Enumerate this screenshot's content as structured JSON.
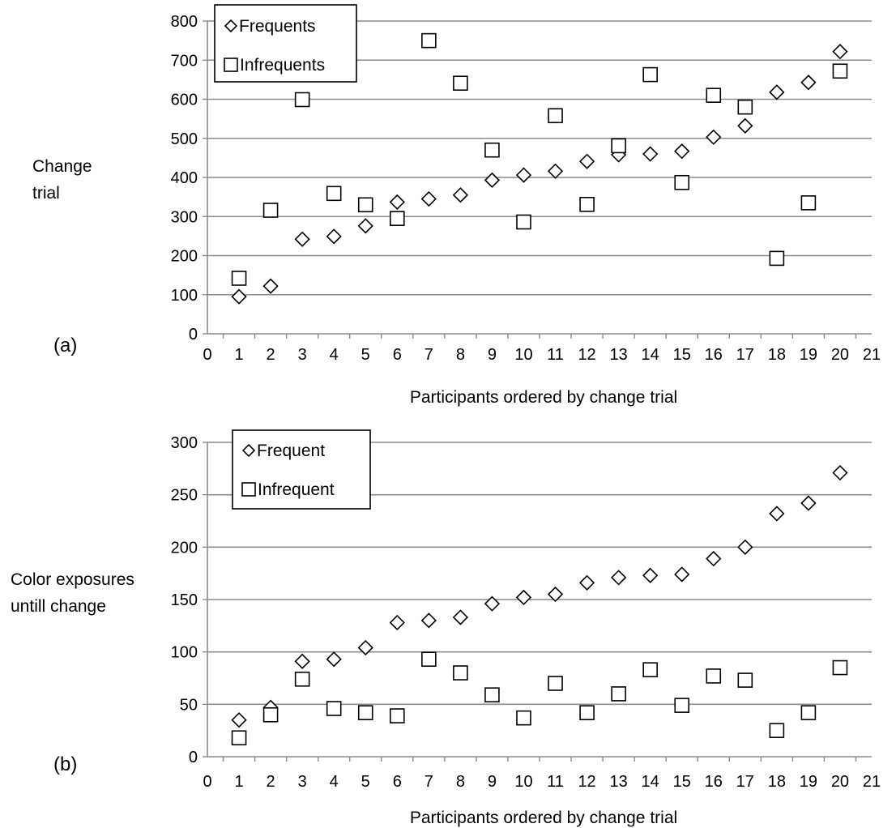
{
  "chart_data": [
    {
      "type": "scatter",
      "panel_label": "(a)",
      "ylabel": [
        "Change",
        "trial"
      ],
      "xlabel": "Participants ordered by change trial",
      "xlim": [
        0,
        21
      ],
      "ylim": [
        0,
        800
      ],
      "xticks": [
        0,
        1,
        2,
        3,
        4,
        5,
        6,
        7,
        8,
        9,
        10,
        11,
        12,
        13,
        14,
        15,
        16,
        17,
        18,
        19,
        20,
        21
      ],
      "yticks": [
        0,
        100,
        200,
        300,
        400,
        500,
        600,
        700,
        800
      ],
      "grid": "horizontal",
      "legend_position": "top-left",
      "series": [
        {
          "name": "Frequents",
          "marker": "diamond",
          "x": [
            1,
            2,
            3,
            4,
            5,
            6,
            7,
            8,
            9,
            10,
            11,
            12,
            13,
            14,
            15,
            16,
            17,
            18,
            19,
            20
          ],
          "y": [
            95,
            122,
            242,
            249,
            276,
            337,
            345,
            355,
            393,
            406,
            416,
            441,
            458,
            460,
            467,
            503,
            532,
            618,
            643,
            722
          ]
        },
        {
          "name": "Infrequents",
          "marker": "square",
          "x": [
            1,
            2,
            3,
            4,
            5,
            6,
            7,
            8,
            9,
            10,
            11,
            12,
            13,
            14,
            15,
            16,
            17,
            18,
            19,
            20
          ],
          "y": [
            142,
            316,
            599,
            359,
            330,
            295,
            750,
            641,
            470,
            286,
            558,
            331,
            481,
            663,
            387,
            610,
            580,
            193,
            335,
            672
          ]
        }
      ]
    },
    {
      "type": "scatter",
      "panel_label": "(b)",
      "ylabel": [
        "Color exposures",
        "untill change"
      ],
      "xlabel": "Participants ordered by change trial",
      "xlim": [
        0,
        21
      ],
      "ylim": [
        0,
        300
      ],
      "xticks": [
        0,
        1,
        2,
        3,
        4,
        5,
        6,
        7,
        8,
        9,
        10,
        11,
        12,
        13,
        14,
        15,
        16,
        17,
        18,
        19,
        20,
        21
      ],
      "yticks": [
        0,
        50,
        100,
        150,
        200,
        250,
        300
      ],
      "grid": "horizontal",
      "legend_position": "top-left",
      "series": [
        {
          "name": "Frequent",
          "marker": "diamond",
          "x": [
            1,
            2,
            3,
            4,
            5,
            6,
            7,
            8,
            9,
            10,
            11,
            12,
            13,
            14,
            15,
            16,
            17,
            18,
            19,
            20
          ],
          "y": [
            35,
            47,
            91,
            93,
            104,
            128,
            130,
            133,
            146,
            152,
            155,
            166,
            171,
            173,
            174,
            189,
            200,
            232,
            242,
            271
          ]
        },
        {
          "name": "Infrequent",
          "marker": "square",
          "x": [
            1,
            2,
            3,
            4,
            5,
            6,
            7,
            8,
            9,
            10,
            11,
            12,
            13,
            14,
            15,
            16,
            17,
            18,
            19,
            20
          ],
          "y": [
            18,
            40,
            74,
            46,
            42,
            39,
            93,
            80,
            59,
            37,
            70,
            42,
            60,
            83,
            49,
            77,
            73,
            25,
            42,
            85
          ]
        }
      ]
    }
  ]
}
